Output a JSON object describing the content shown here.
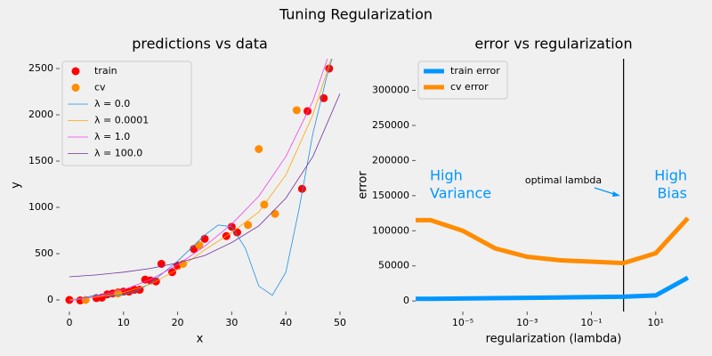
{
  "title": "Tuning Regularization",
  "chart_data": [
    {
      "type": "scatter",
      "title": "predictions vs data",
      "xlabel": "x",
      "ylabel": "y",
      "xlim": [
        -1.8,
        50
      ],
      "ylim": [
        -125,
        2606
      ],
      "xticks": [
        0,
        10,
        20,
        30,
        40,
        50
      ],
      "yticks": [
        0,
        500,
        1000,
        1500,
        2000,
        2500
      ],
      "legend": "upper left",
      "series": [
        {
          "name": "train",
          "type": "scatter",
          "color": "#ff0000",
          "x": [
            0,
            2,
            5,
            6,
            7,
            8,
            9,
            10,
            11,
            12,
            13,
            14,
            15,
            16,
            17,
            19,
            20,
            23,
            25,
            29,
            30,
            31,
            43,
            44,
            47,
            48
          ],
          "values": [
            0,
            -5,
            20,
            25,
            60,
            70,
            80,
            90,
            90,
            110,
            110,
            220,
            210,
            200,
            390,
            300,
            370,
            550,
            660,
            690,
            790,
            730,
            1200,
            2040,
            2180,
            2500
          ]
        },
        {
          "name": "cv",
          "type": "scatter",
          "color": "#ff8c00",
          "x": [
            3,
            9,
            21,
            24,
            33,
            35,
            36,
            38,
            42
          ],
          "values": [
            0,
            70,
            390,
            590,
            810,
            1630,
            1030,
            930,
            2050
          ]
        },
        {
          "name": "λ = 0.0",
          "type": "line",
          "color": "#1f90e0",
          "x": [
            0,
            2.5,
            5,
            7.5,
            10,
            12.5,
            15,
            17.5,
            20,
            22.5,
            25,
            27.5,
            30,
            32.5,
            35,
            37.5,
            40,
            42.5,
            45,
            47.5,
            50
          ],
          "values": [
            0,
            20,
            55,
            40,
            60,
            100,
            180,
            300,
            420,
            560,
            700,
            810,
            790,
            560,
            150,
            50,
            300,
            1000,
            1800,
            2400,
            2900
          ]
        },
        {
          "name": "λ = 0.0001",
          "type": "line",
          "color": "#ffa500",
          "x": [
            0,
            5,
            10,
            15,
            20,
            25,
            30,
            35,
            40,
            45,
            50
          ],
          "values": [
            0,
            30,
            80,
            170,
            330,
            540,
            730,
            950,
            1350,
            2000,
            2900
          ]
        },
        {
          "name": "λ = 1.0",
          "type": "line",
          "color": "#ee40ee",
          "x": [
            0,
            5,
            10,
            15,
            20,
            25,
            30,
            35,
            40,
            45,
            50
          ],
          "values": [
            -10,
            40,
            110,
            220,
            380,
            580,
            820,
            1120,
            1550,
            2150,
            3000
          ]
        },
        {
          "name": "λ = 100.0",
          "type": "line",
          "color": "#7030a0",
          "x": [
            0,
            5,
            10,
            15,
            20,
            25,
            30,
            35,
            40,
            45,
            50
          ],
          "values": [
            250,
            270,
            300,
            340,
            400,
            480,
            620,
            800,
            1100,
            1550,
            2230
          ]
        }
      ]
    },
    {
      "type": "line",
      "title": "error vs regularization",
      "xlabel": "regularization (lambda)",
      "ylabel": "error",
      "xscale": "log",
      "xlim": [
        3.4e-07,
        130
      ],
      "ylim": [
        -15000,
        345000
      ],
      "xticks": [
        {
          "value": 1e-05,
          "label": "10⁻⁵"
        },
        {
          "value": 0.001,
          "label": "10⁻³"
        },
        {
          "value": 0.1,
          "label": "10⁻¹"
        },
        {
          "value": 10,
          "label": "10¹"
        }
      ],
      "yticks": [
        0,
        50000,
        100000,
        150000,
        200000,
        250000,
        300000
      ],
      "legend": "upper left",
      "x": [
        3.4e-07,
        1e-06,
        1e-05,
        0.0001,
        0.001,
        0.01,
        0.1,
        1,
        10,
        100
      ],
      "series": [
        {
          "name": "train error",
          "color": "#0096ff",
          "values": [
            3000,
            3000,
            3500,
            4000,
            4500,
            5000,
            5500,
            6000,
            8000,
            33000
          ]
        },
        {
          "name": "cv error",
          "color": "#ff8c00",
          "values": [
            115000,
            115000,
            100000,
            75000,
            63000,
            58000,
            56000,
            54000,
            68000,
            118000
          ]
        }
      ],
      "vline": 1,
      "annotations": [
        {
          "lines": [
            "High",
            "Variance"
          ],
          "color": "#0096ff"
        },
        {
          "lines": [
            "High",
            "Bias"
          ],
          "color": "#0096ff"
        },
        {
          "lines": [
            "optimal lambda"
          ],
          "color": "#000000"
        }
      ]
    }
  ]
}
